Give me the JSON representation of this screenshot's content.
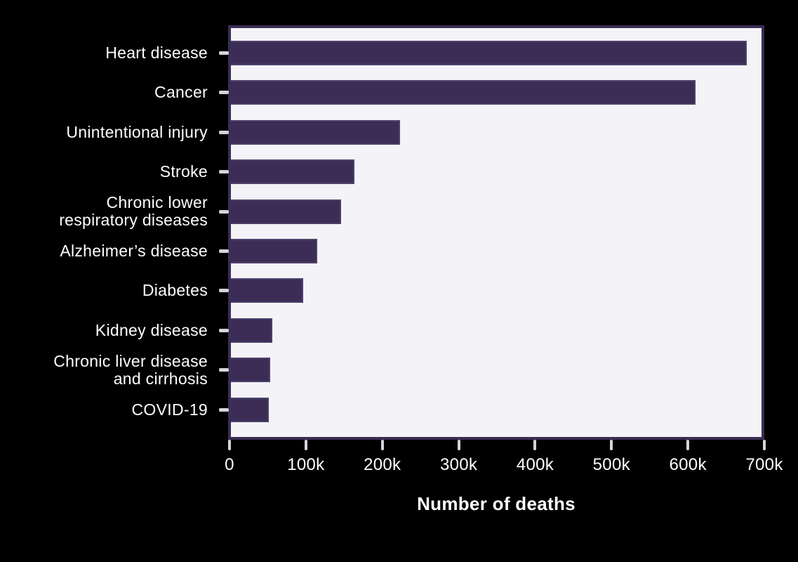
{
  "chart_data": {
    "type": "bar",
    "orientation": "horizontal",
    "title": "",
    "xlabel": "Number of deaths",
    "ylabel": "",
    "xlim": [
      0,
      700000
    ],
    "grid": false,
    "legend": "none",
    "categories": [
      "Heart disease",
      "Cancer",
      "Unintentional injury",
      "Stroke",
      "Chronic lower\nrespiratory diseases",
      "Alzheimer’s disease",
      "Diabetes",
      "Kidney disease",
      "Chronic liver disease\nand cirrhosis",
      "COVID-19"
    ],
    "values": [
      681000,
      613000,
      223000,
      163000,
      145000,
      114000,
      95000,
      55000,
      52000,
      50000
    ],
    "x_tick_labels": [
      "0",
      "100k",
      "200k",
      "300k",
      "400k",
      "500k",
      "600k",
      "700k"
    ],
    "colors": {
      "page_background": "#000000",
      "plot_background": "#f4f3f7",
      "bar_fill": "#3b2d55",
      "bar_edge": "#4c416b",
      "plot_border": "#3b2d55",
      "tick_mark": "#d7d3dd",
      "text": "#ffffff"
    }
  }
}
